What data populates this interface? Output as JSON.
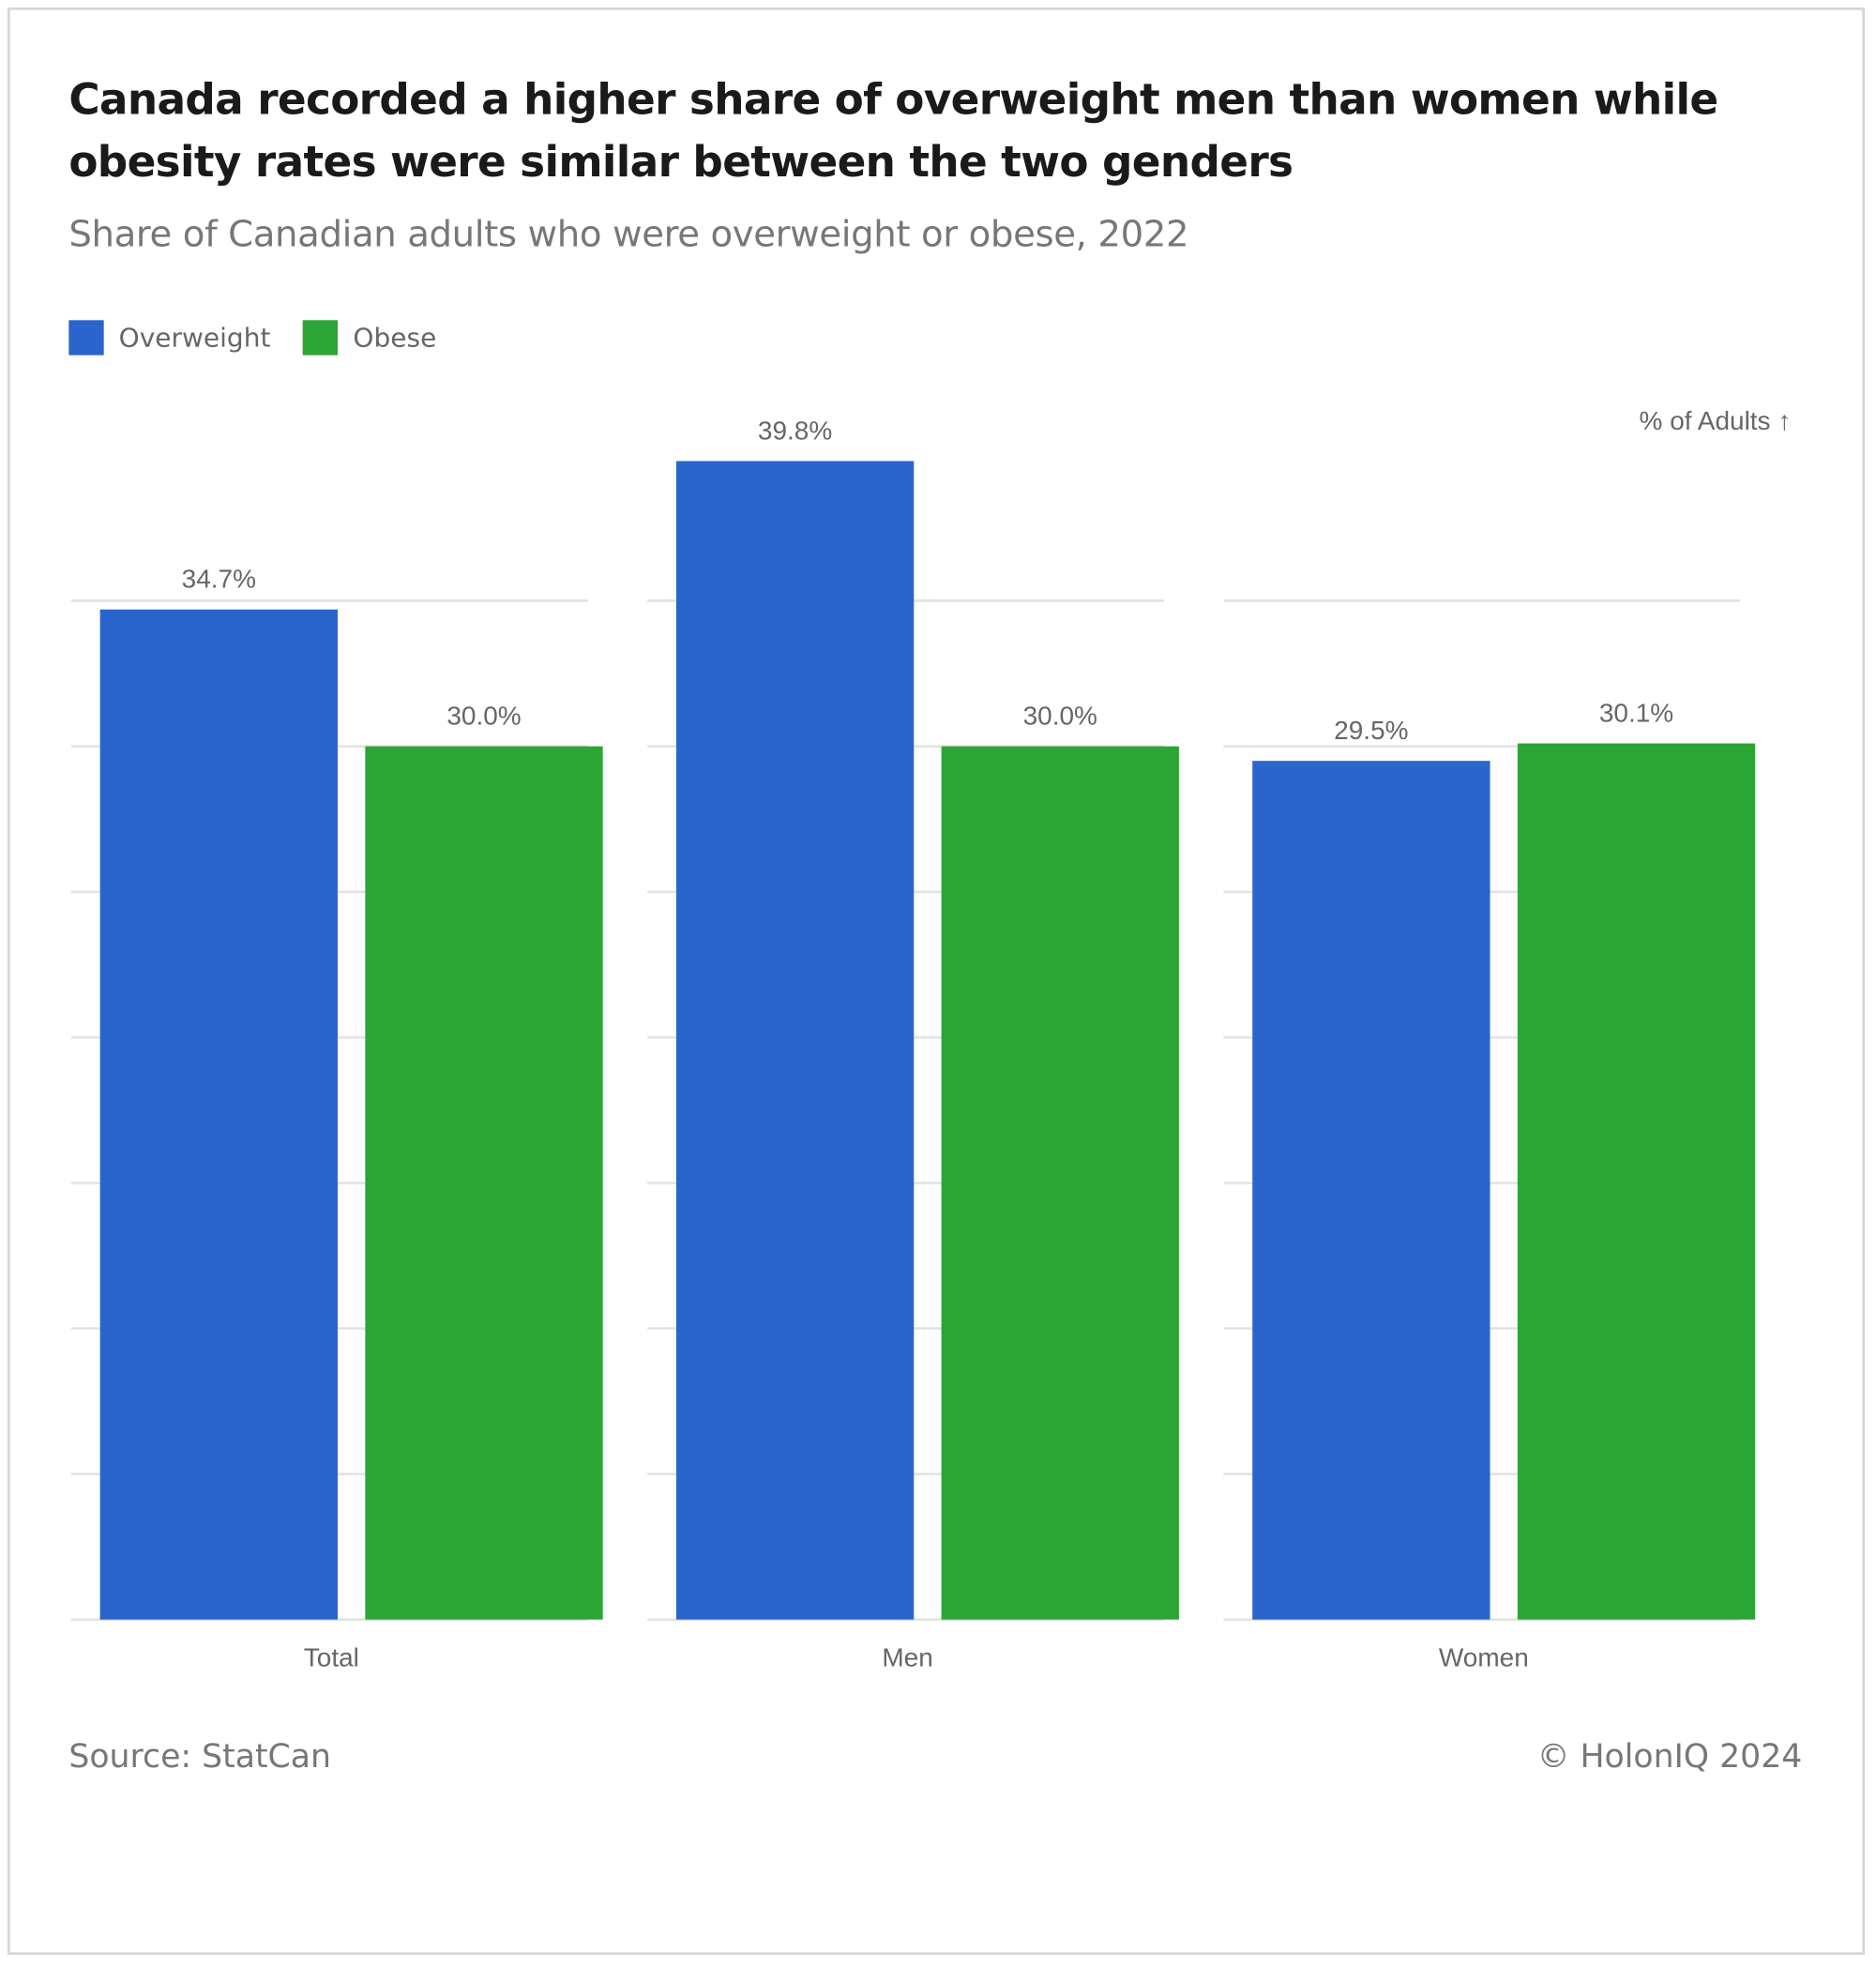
{
  "chart_data": {
    "type": "bar",
    "title": "Canada recorded a higher share of overweight men than women while obesity rates were similar between the two genders",
    "subtitle": "Share of Canadian adults who were overweight or obese, 2022",
    "y_axis_label": "% of Adults ↑",
    "categories": [
      "Total",
      "Men",
      "Women"
    ],
    "series": [
      {
        "name": "Overweight",
        "color": "#2a65cc",
        "values": [
          34.7,
          39.8,
          29.5
        ],
        "value_labels": [
          "34.7%",
          "39.8%",
          "29.5%"
        ]
      },
      {
        "name": "Obese",
        "color": "#2ba636",
        "values": [
          30.0,
          30.0,
          30.1
        ],
        "value_labels": [
          "30.0%",
          "30.0%",
          "30.1%"
        ]
      }
    ],
    "ylim": [
      0,
      40
    ],
    "yticks": [
      0,
      5,
      10,
      15,
      20,
      25,
      30,
      35
    ],
    "grid": true,
    "source": "Source: StatCan",
    "credit": "© HolonIQ 2024"
  }
}
